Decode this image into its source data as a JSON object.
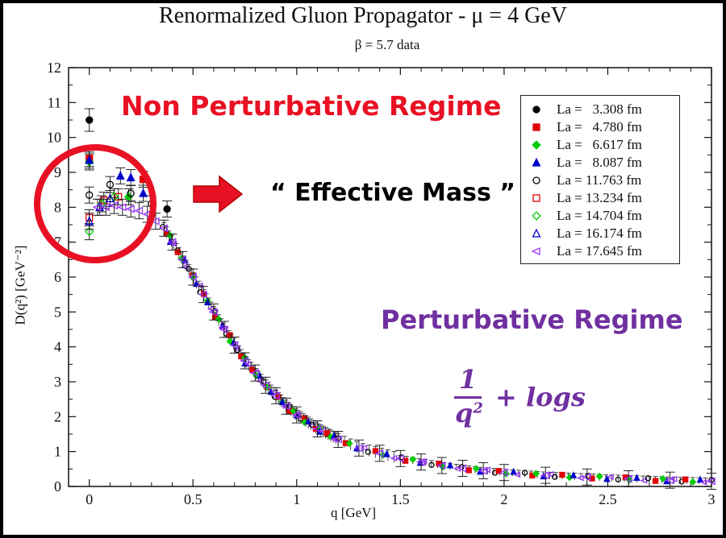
{
  "chart_data": {
    "type": "scatter",
    "title": "Renormalized Gluon Propagator - μ = 4 GeV",
    "subtitle": "β = 5.7 data",
    "xlabel": "q  [GeV]",
    "ylabel": "D(q²)  [GeV⁻²]",
    "xlim": [
      -0.1,
      3.0
    ],
    "ylim": [
      0,
      12
    ],
    "x_ticks": [
      "0",
      "0.5",
      "1",
      "1.5",
      "2",
      "2.5",
      "3"
    ],
    "y_ticks": [
      "0",
      "1",
      "2",
      "3",
      "4",
      "5",
      "6",
      "7",
      "8",
      "9",
      "10",
      "11",
      "12"
    ],
    "grid": false,
    "legend_position": "top-right",
    "series": [
      {
        "name": "La =   3.308 fm",
        "marker": "filled-circle",
        "color": "#000000",
        "x": [
          0.0,
          0.375
        ],
        "y": [
          10.5,
          7.95
        ]
      },
      {
        "name": "La =   4.780 fm",
        "marker": "filled-square",
        "color": "#e00000",
        "x": [
          0.0,
          0.26
        ],
        "y": [
          9.4,
          8.8
        ]
      },
      {
        "name": "La =   6.617 fm",
        "marker": "filled-diamond",
        "color": "#00cc00",
        "x": [
          0.0,
          0.19
        ],
        "y": [
          9.3,
          8.3
        ]
      },
      {
        "name": "La =   8.087 fm",
        "marker": "filled-triangle",
        "color": "#0000cc",
        "x": [
          0.0,
          0.15,
          0.2,
          0.26
        ],
        "y": [
          9.35,
          8.9,
          8.85,
          8.4
        ]
      },
      {
        "name": "La = 11.763 fm",
        "marker": "open-circle",
        "color": "#000000",
        "x": [
          0.0,
          0.1,
          0.2,
          0.3
        ],
        "y": [
          8.35,
          8.65,
          8.4,
          8.1
        ]
      },
      {
        "name": "La = 13.234 fm",
        "marker": "open-square",
        "color": "#e00000",
        "x": [
          0.0,
          0.07,
          0.14
        ],
        "y": [
          7.7,
          8.2,
          8.3
        ]
      },
      {
        "name": "La = 14.704 fm",
        "marker": "open-diamond",
        "color": "#00cc00",
        "x": [
          0.0,
          0.06,
          0.12
        ],
        "y": [
          7.3,
          8.1,
          8.3
        ]
      },
      {
        "name": "La = 16.174 fm",
        "marker": "open-triangle",
        "color": "#0000cc",
        "x": [
          0.0,
          0.05,
          0.1
        ],
        "y": [
          7.6,
          8.0,
          8.25
        ]
      },
      {
        "name": "La = 17.645 fm",
        "marker": "open-left-triangle",
        "color": "#9933ff",
        "x": [
          0.04,
          0.08,
          0.12,
          0.16,
          0.2,
          0.24,
          0.28,
          0.32,
          0.36,
          0.4,
          0.45,
          0.5,
          0.55,
          0.6,
          0.65,
          0.7,
          0.75,
          0.8,
          0.85,
          0.9,
          0.95,
          1.0,
          1.1,
          1.2,
          1.3,
          1.4,
          1.5,
          1.6,
          1.7,
          1.8,
          1.9,
          2.0,
          2.2,
          2.4,
          2.6,
          2.8,
          3.0
        ],
        "y": [
          8.0,
          8.0,
          8.05,
          8.0,
          7.95,
          7.9,
          7.8,
          7.6,
          7.4,
          7.0,
          6.5,
          6.0,
          5.5,
          5.0,
          4.5,
          4.05,
          3.6,
          3.25,
          2.9,
          2.6,
          2.3,
          2.05,
          1.65,
          1.35,
          1.1,
          0.95,
          0.8,
          0.7,
          0.6,
          0.52,
          0.45,
          0.4,
          0.32,
          0.27,
          0.22,
          0.18,
          0.15
        ]
      }
    ],
    "annotations": {
      "non_perturbative": "Non Perturbative Regime",
      "effective_mass": "“ Effective Mass ”",
      "perturbative": "Perturbative Regime",
      "formula_numerator": "1",
      "formula_denominator": "q",
      "formula_exponent": "2",
      "formula_rest": "+ logs"
    }
  },
  "colors": {
    "accent_red": "#e81123",
    "accent_purple": "#7030a0",
    "arrow_fill": "#e81123"
  }
}
